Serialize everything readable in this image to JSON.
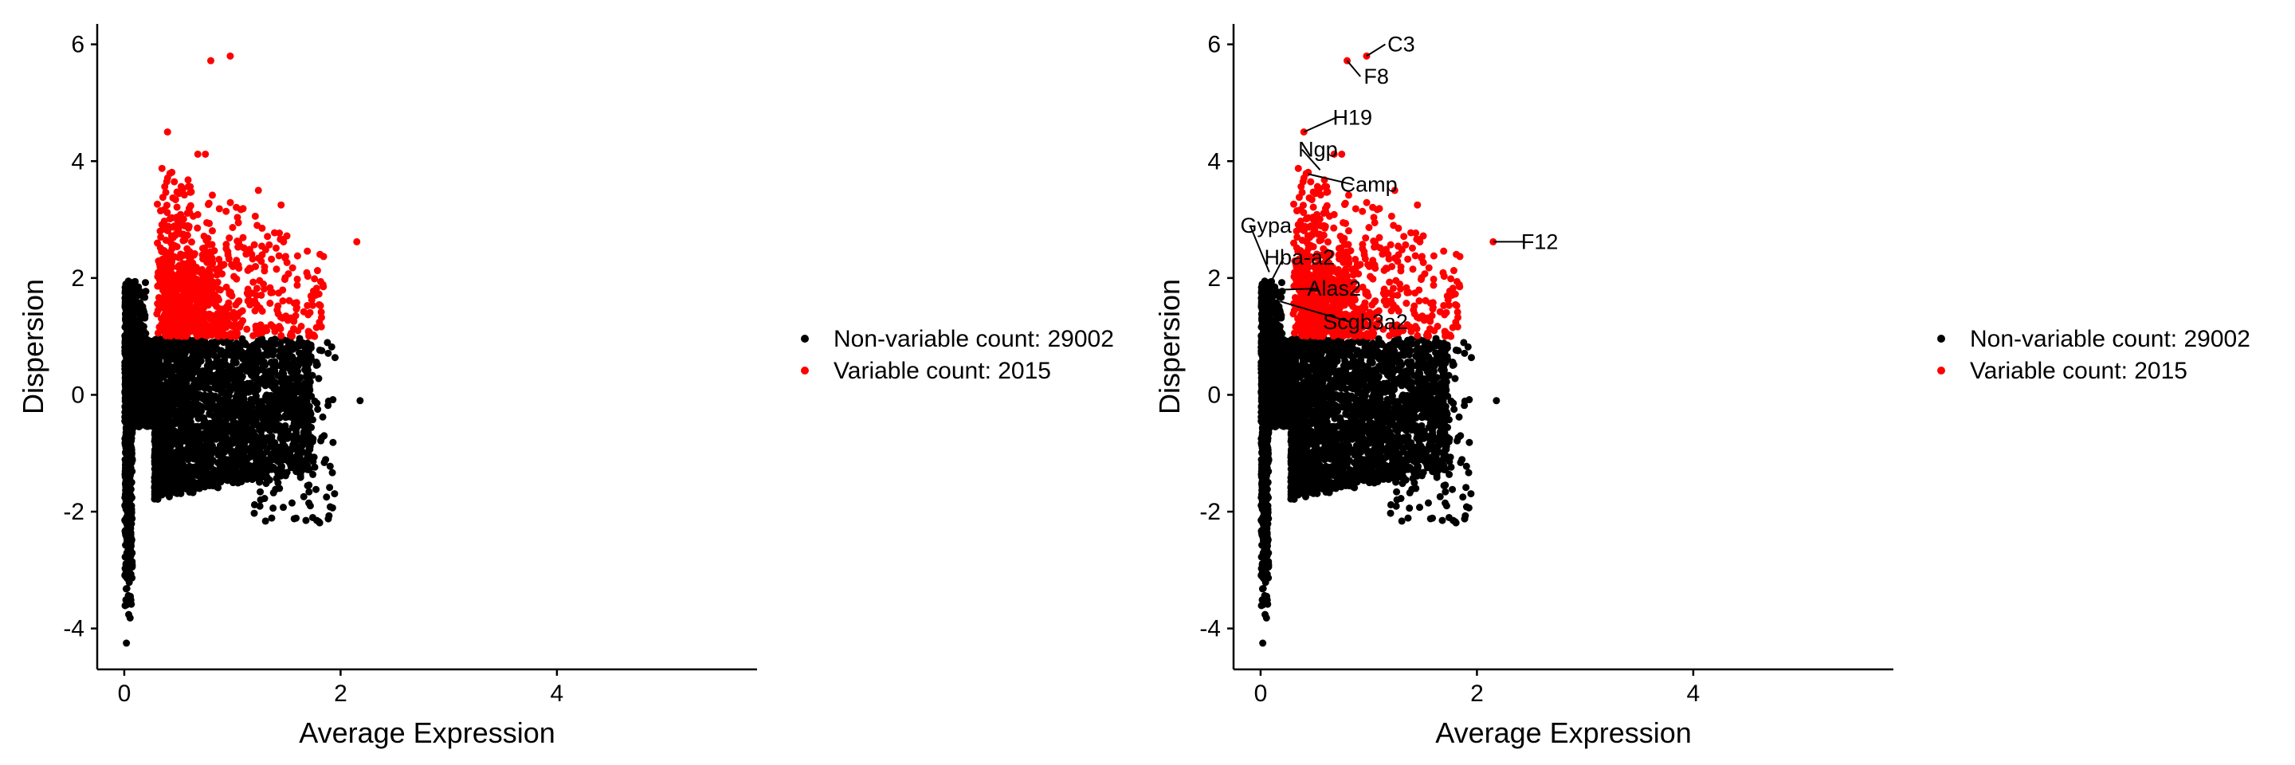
{
  "colors": {
    "non_variable": "#000000",
    "variable": "#ff0000",
    "axis": "#000000",
    "background": "#ffffff"
  },
  "chart_data": [
    {
      "type": "scatter",
      "title": "",
      "xlabel": "Average Expression",
      "ylabel": "Dispersion",
      "xlim": [
        -0.25,
        5.85
      ],
      "ylim": [
        -4.7,
        6.35
      ],
      "x_ticks": [
        0,
        2,
        4
      ],
      "y_ticks": [
        -4,
        -2,
        0,
        2,
        4,
        6
      ],
      "grid": false,
      "legend_position": "right",
      "series": [
        {
          "name": "Non-variable count: 29002",
          "key": "non_variable",
          "color": "#000000",
          "count": 29002
        },
        {
          "name": "Variable count: 2015",
          "key": "variable",
          "color": "#ff0000",
          "count": 2015
        }
      ],
      "highlight_points": [
        {
          "x": 0.8,
          "y": 5.72
        },
        {
          "x": 0.98,
          "y": 5.8
        },
        {
          "x": 0.4,
          "y": 4.5
        },
        {
          "x": 0.68,
          "y": 4.12
        },
        {
          "x": 0.75,
          "y": 4.12
        },
        {
          "x": 2.15,
          "y": 2.62
        },
        {
          "x": 1.24,
          "y": 3.5
        },
        {
          "x": 1.45,
          "y": 3.25
        }
      ],
      "gene_labels": []
    },
    {
      "type": "scatter",
      "title": "",
      "xlabel": "Average Expression",
      "ylabel": "Dispersion",
      "xlim": [
        -0.25,
        5.85
      ],
      "ylim": [
        -4.7,
        6.35
      ],
      "x_ticks": [
        0,
        2,
        4
      ],
      "y_ticks": [
        -4,
        -2,
        0,
        2,
        4,
        6
      ],
      "grid": false,
      "legend_position": "right",
      "series": [
        {
          "name": "Non-variable count: 29002",
          "key": "non_variable",
          "color": "#000000",
          "count": 29002
        },
        {
          "name": "Variable count: 2015",
          "key": "variable",
          "color": "#ff0000",
          "count": 2015
        }
      ],
      "highlight_points": [
        {
          "x": 0.8,
          "y": 5.72
        },
        {
          "x": 0.98,
          "y": 5.8
        },
        {
          "x": 0.4,
          "y": 4.5
        },
        {
          "x": 0.68,
          "y": 4.12
        },
        {
          "x": 0.75,
          "y": 4.12
        },
        {
          "x": 2.15,
          "y": 2.62
        },
        {
          "x": 1.24,
          "y": 3.5
        },
        {
          "x": 1.45,
          "y": 3.25
        }
      ],
      "gene_labels": [
        {
          "gene": "C3",
          "x": 0.98,
          "y": 5.8,
          "lx": 1.3,
          "ly": 6.0
        },
        {
          "gene": "F8",
          "x": 0.8,
          "y": 5.72,
          "lx": 1.07,
          "ly": 5.45
        },
        {
          "gene": "H19",
          "x": 0.4,
          "y": 4.5,
          "lx": 0.85,
          "ly": 4.75
        },
        {
          "gene": "Ngp",
          "x": 0.55,
          "y": 3.85,
          "lx": 0.53,
          "ly": 4.2
        },
        {
          "gene": "Camp",
          "x": 0.44,
          "y": 3.78,
          "lx": 1.0,
          "ly": 3.6
        },
        {
          "gene": "F12",
          "x": 2.15,
          "y": 2.62,
          "lx": 2.58,
          "ly": 2.62
        },
        {
          "gene": "Gypa",
          "x": 0.08,
          "y": 2.1,
          "lx": 0.05,
          "ly": 2.9
        },
        {
          "gene": "Hba-a2",
          "x": 0.1,
          "y": 1.95,
          "lx": 0.36,
          "ly": 2.35
        },
        {
          "gene": "Alas2",
          "x": 0.2,
          "y": 1.8,
          "lx": 0.68,
          "ly": 1.82
        },
        {
          "gene": "Scgb3a2",
          "x": 0.18,
          "y": 1.6,
          "lx": 0.97,
          "ly": 1.25
        }
      ]
    }
  ]
}
